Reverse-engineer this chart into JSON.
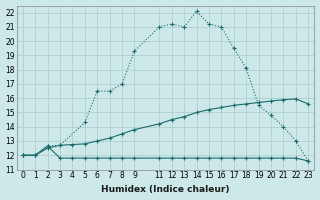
{
  "xlabel": "Humidex (Indice chaleur)",
  "ylabel": "",
  "bg_color": "#cce8e8",
  "grid_color": "#aacccc",
  "line_color": "#1a6b6b",
  "xlim": [
    -0.5,
    23.5
  ],
  "ylim": [
    11,
    22.5
  ],
  "yticks": [
    11,
    12,
    13,
    14,
    15,
    16,
    17,
    18,
    19,
    20,
    21,
    22
  ],
  "xticks": [
    0,
    1,
    2,
    3,
    4,
    5,
    6,
    7,
    8,
    9,
    11,
    12,
    13,
    14,
    15,
    16,
    17,
    18,
    19,
    20,
    21,
    22,
    23
  ],
  "line1_x": [
    0,
    1,
    2,
    3,
    4,
    5,
    6,
    7,
    8,
    9,
    11,
    12,
    13,
    14,
    15,
    16,
    17,
    18,
    19,
    20,
    21,
    22,
    23
  ],
  "line1_y": [
    12,
    12,
    12.65,
    11.8,
    11.8,
    11.8,
    11.8,
    11.8,
    11.8,
    11.8,
    11.8,
    11.8,
    11.8,
    11.8,
    11.8,
    11.8,
    11.8,
    11.8,
    11.8,
    11.8,
    11.8,
    11.8,
    11.6
  ],
  "line2_x": [
    0,
    1,
    2,
    3,
    4,
    5,
    6,
    7,
    8,
    9,
    11,
    12,
    13,
    14,
    15,
    16,
    17,
    18,
    19,
    20,
    21,
    22,
    23
  ],
  "line2_y": [
    12,
    12,
    12.5,
    12.7,
    12.75,
    12.8,
    13.0,
    13.2,
    13.5,
    13.8,
    14.2,
    14.5,
    14.7,
    15.0,
    15.2,
    15.35,
    15.5,
    15.6,
    15.7,
    15.8,
    15.9,
    15.95,
    15.6
  ],
  "line3_x": [
    0,
    1,
    2,
    3,
    5,
    6,
    7,
    8,
    9,
    11,
    12,
    13,
    14,
    15,
    16,
    17,
    18,
    19,
    20,
    21,
    22,
    23
  ],
  "line3_y": [
    12,
    12,
    12.65,
    12.7,
    14.3,
    16.5,
    16.5,
    17.0,
    19.3,
    21.0,
    21.2,
    21.0,
    22.1,
    21.2,
    21.0,
    19.5,
    18.1,
    15.5,
    14.8,
    14.0,
    13.0,
    11.6
  ]
}
